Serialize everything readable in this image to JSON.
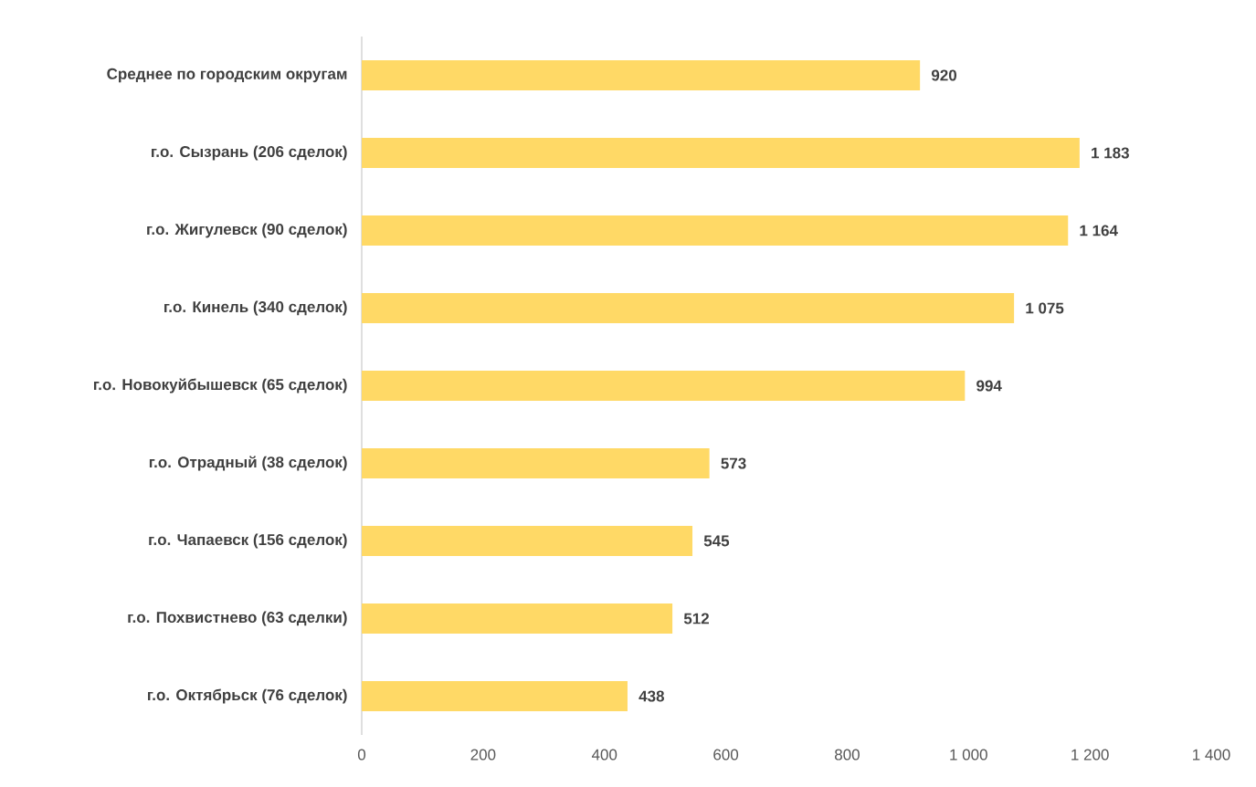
{
  "chart_data": {
    "type": "bar",
    "orientation": "horizontal",
    "categories": [
      "Среднее по городским округам",
      "г.о. Сызрань (206 сделок)",
      "г.о. Жигулевск (90 сделок)",
      "г.о. Кинель (340 сделок)",
      "г.о. Новокуйбышевск (65 сделок)",
      "г.о. Отрадный (38 сделок)",
      "г.о. Чапаевск (156 сделок)",
      "г.о. Похвистнево (63 сделки)",
      "г.о. Октябрьск (76 сделок)"
    ],
    "values": [
      920,
      1183,
      1164,
      1075,
      994,
      573,
      545,
      512,
      438
    ],
    "value_labels": [
      "920",
      "1 183",
      "1 164",
      "1 075",
      "994",
      "573",
      "545",
      "512",
      "438"
    ],
    "color": "#ffd966",
    "xlim": [
      0,
      1400
    ],
    "xticks": [
      0,
      200,
      400,
      600,
      800,
      {
        "value": 1000,
        "label": "1 000"
      },
      {
        "value": 1200,
        "label": "1 200"
      },
      {
        "value": 1400,
        "label": "1 400"
      }
    ]
  }
}
